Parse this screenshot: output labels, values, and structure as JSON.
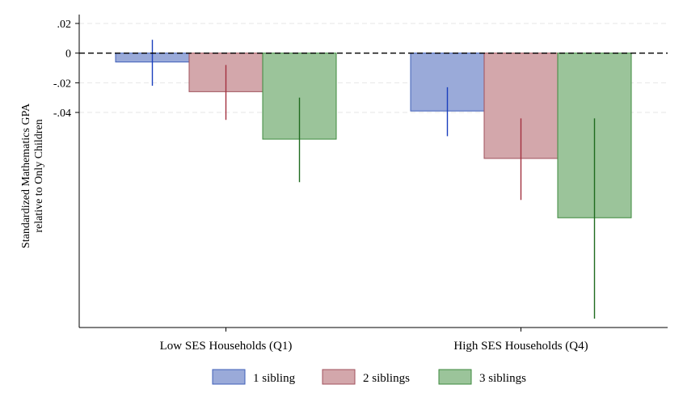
{
  "chart_data": {
    "type": "bar",
    "title": "",
    "xlabel": "",
    "ylabel_lines": [
      "Standardized Mathematics GPA",
      "relative to Only Children"
    ],
    "categories": [
      "Low SES Households (Q1)",
      "High SES Households (Q4)"
    ],
    "y_ticks": [
      0.02,
      0,
      -0.02,
      -0.04
    ],
    "y_tick_labels": [
      ".02",
      "0",
      "-.02",
      "-.04"
    ],
    "ylim": [
      -0.185,
      0.026
    ],
    "reference_line": 0,
    "grid": "dashed horizontal at tick values",
    "legend_position": "bottom",
    "series": [
      {
        "name": "1 sibling",
        "fill": "#9aaad9",
        "stroke": "#3f5fb8",
        "ci_color": "#1a3fbd",
        "values": [
          -0.006,
          -0.039
        ],
        "ci_low": [
          -0.022,
          -0.056
        ],
        "ci_high": [
          0.009,
          -0.023
        ]
      },
      {
        "name": "2 siblings",
        "fill": "#d3a7ab",
        "stroke": "#a0525c",
        "ci_color": "#a3303f",
        "values": [
          -0.026,
          -0.071
        ],
        "ci_low": [
          -0.045,
          -0.099
        ],
        "ci_high": [
          -0.008,
          -0.044
        ]
      },
      {
        "name": "3 siblings",
        "fill": "#9bc49a",
        "stroke": "#3d8a3d",
        "ci_color": "#1f6b1f",
        "values": [
          -0.058,
          -0.111
        ],
        "ci_low": [
          -0.087,
          -0.179
        ],
        "ci_high": [
          -0.03,
          -0.044
        ]
      }
    ]
  }
}
